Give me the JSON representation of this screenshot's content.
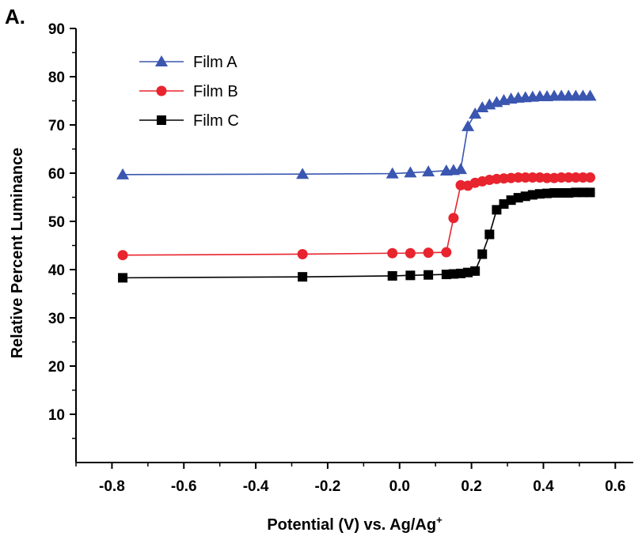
{
  "panel_label": "A.",
  "chart_data": {
    "type": "line",
    "xlabel": "Potential (V) vs. Ag/Ag",
    "xlabel_superscript": "+",
    "ylabel": "Relative Percent Luminance",
    "xlim": [
      -0.9,
      0.65
    ],
    "ylim": [
      0,
      90
    ],
    "x_ticks": [
      "-0.8",
      "-0.6",
      "-0.4",
      "-0.2",
      "0.0",
      "0.2",
      "0.4",
      "0.6"
    ],
    "y_ticks": [
      "10",
      "20",
      "30",
      "40",
      "50",
      "60",
      "70",
      "80",
      "90"
    ],
    "grid": false,
    "legend_position": "top-left",
    "series": [
      {
        "name": "Film A",
        "color": "#3a56b0",
        "marker": "triangle",
        "x": [
          -0.77,
          -0.27,
          -0.02,
          0.03,
          0.08,
          0.13,
          0.15,
          0.17,
          0.19,
          0.21,
          0.23,
          0.25,
          0.27,
          0.29,
          0.31,
          0.33,
          0.35,
          0.37,
          0.39,
          0.41,
          0.43,
          0.45,
          0.47,
          0.49,
          0.51,
          0.53
        ],
        "y": [
          59.7,
          59.8,
          59.9,
          60.1,
          60.3,
          60.5,
          60.6,
          60.8,
          69.7,
          72.3,
          73.6,
          74.2,
          74.7,
          75.1,
          75.4,
          75.6,
          75.7,
          75.8,
          75.9,
          75.9,
          76.0,
          76.0,
          76.0,
          76.0,
          76.0,
          76.0
        ]
      },
      {
        "name": "Film B",
        "color": "#e8242e",
        "marker": "circle",
        "x": [
          -0.77,
          -0.27,
          -0.02,
          0.03,
          0.08,
          0.13,
          0.15,
          0.17,
          0.19,
          0.21,
          0.23,
          0.25,
          0.27,
          0.29,
          0.31,
          0.33,
          0.35,
          0.37,
          0.39,
          0.41,
          0.43,
          0.45,
          0.47,
          0.49,
          0.51,
          0.53
        ],
        "y": [
          43.0,
          43.2,
          43.4,
          43.4,
          43.5,
          43.6,
          50.7,
          57.5,
          57.4,
          58.0,
          58.3,
          58.6,
          58.8,
          58.9,
          59.0,
          59.1,
          59.1,
          59.1,
          59.1,
          59.0,
          59.0,
          59.1,
          59.1,
          59.1,
          59.1,
          59.1
        ]
      },
      {
        "name": "Film C",
        "color": "#000000",
        "marker": "square",
        "x": [
          -0.77,
          -0.27,
          -0.02,
          0.03,
          0.08,
          0.13,
          0.15,
          0.17,
          0.19,
          0.21,
          0.23,
          0.25,
          0.27,
          0.29,
          0.31,
          0.33,
          0.35,
          0.37,
          0.39,
          0.41,
          0.43,
          0.45,
          0.47,
          0.49,
          0.51,
          0.53
        ],
        "y": [
          38.3,
          38.5,
          38.7,
          38.8,
          38.9,
          39.0,
          39.1,
          39.2,
          39.4,
          39.7,
          43.2,
          47.3,
          52.4,
          53.6,
          54.4,
          54.9,
          55.2,
          55.5,
          55.7,
          55.8,
          55.9,
          55.9,
          55.9,
          56.0,
          56.0,
          56.0
        ]
      }
    ]
  }
}
